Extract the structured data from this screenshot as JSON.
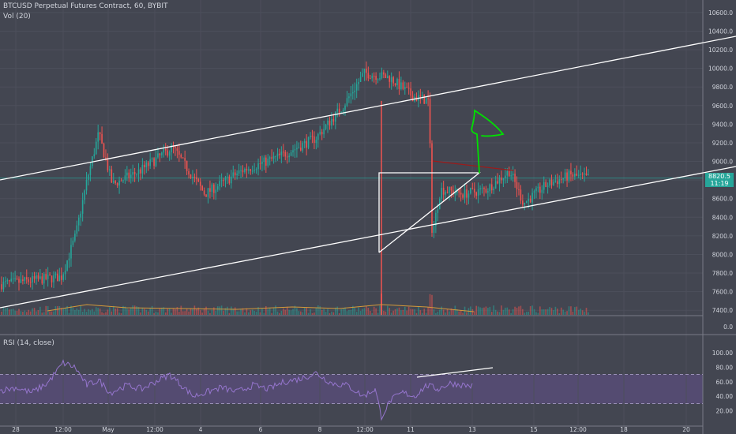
{
  "header": {
    "title": "BTCUSD Perpetual Futures Contract, 60, BYBIT",
    "vol_label": "Vol (20)",
    "rsi_label": "RSI (14, close)"
  },
  "price_label": {
    "price": "8820.5",
    "countdown": "11:19"
  },
  "colors": {
    "background": "#434651",
    "up": "#26a69a",
    "down": "#ef5350",
    "rsi": "#9575cd",
    "arrow": "#00e000",
    "trendline": "#ffffff",
    "resistance": "#9c1b1b"
  },
  "chart_data": [
    {
      "type": "candlestick",
      "title": "BTCUSD Perpetual Futures Contract, 60, BYBIT",
      "x_tick_labels": [
        "28",
        "12:00",
        "May",
        "12:00",
        "4",
        "6",
        "8",
        "12:00",
        "11",
        "13",
        "15",
        "12:00",
        "18",
        "20"
      ],
      "y_tick_labels": [
        "7400.0",
        "7600.0",
        "7800.0",
        "8000.0",
        "8200.0",
        "8400.0",
        "8600.0",
        "8800.0",
        "9000.0",
        "9200.0",
        "9400.0",
        "9600.0",
        "9800.0",
        "10000.0",
        "10200.0",
        "10400.0",
        "10600.0"
      ],
      "ylim": [
        7300,
        10700
      ],
      "current_price": 8820.5,
      "price_path_keypoints": [
        {
          "day": 0,
          "price": 7680
        },
        {
          "day": 1.3,
          "price": 7760
        },
        {
          "day": 1.6,
          "price": 8200
        },
        {
          "day": 1.85,
          "price": 8800
        },
        {
          "day": 2.1,
          "price": 9300
        },
        {
          "day": 2.4,
          "price": 8750
        },
        {
          "day": 3.0,
          "price": 8900
        },
        {
          "day": 3.7,
          "price": 9150
        },
        {
          "day": 4.4,
          "price": 8650
        },
        {
          "day": 5.2,
          "price": 8900
        },
        {
          "day": 6.0,
          "price": 9050
        },
        {
          "day": 6.8,
          "price": 9250
        },
        {
          "day": 7.4,
          "price": 9600
        },
        {
          "day": 7.85,
          "price": 9950
        },
        {
          "day": 8.4,
          "price": 9900
        },
        {
          "day": 8.9,
          "price": 9700
        },
        {
          "day": 9.25,
          "price": 9650
        },
        {
          "day": 9.32,
          "price": 8200
        },
        {
          "day": 9.5,
          "price": 8700
        },
        {
          "day": 10.0,
          "price": 8650
        },
        {
          "day": 10.5,
          "price": 8700
        },
        {
          "day": 11.0,
          "price": 8900
        },
        {
          "day": 11.3,
          "price": 8550
        },
        {
          "day": 11.8,
          "price": 8750
        },
        {
          "day": 12.3,
          "price": 8850
        },
        {
          "day": 12.7,
          "price": 8820.5
        }
      ],
      "volume_series": "Vol (20)"
    },
    {
      "type": "line",
      "title": "RSI (14, close)",
      "y_tick_labels": [
        "20.00",
        "40.00",
        "60.00",
        "80.00",
        "100.00"
      ],
      "ylim": [
        0,
        100
      ],
      "bands": [
        30,
        70
      ]
    }
  ]
}
